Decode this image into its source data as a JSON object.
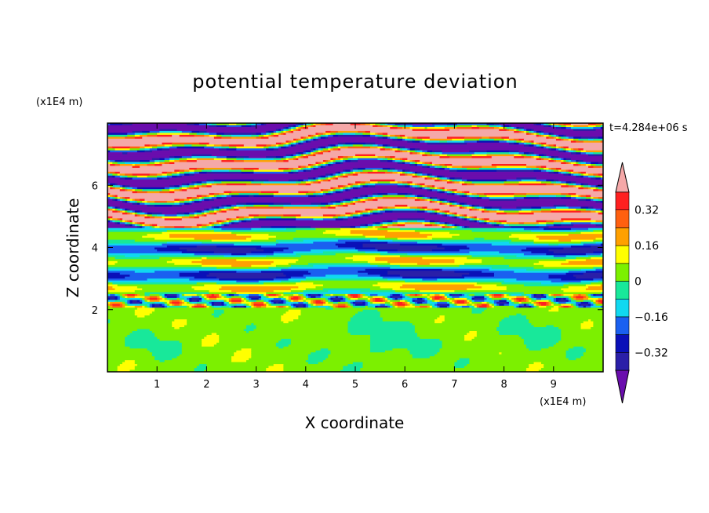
{
  "chart_data": {
    "type": "heatmap",
    "title": "potential temperature deviation",
    "xlabel": "X coordinate",
    "ylabel": "Z coordinate",
    "x_unit": "(x1E4 m)",
    "y_unit": "(x1E4 m)",
    "time_label": "t=4.284e+06 s",
    "xlim": [
      0,
      10
    ],
    "ylim": [
      0,
      8
    ],
    "x_ticks": [
      "1",
      "2",
      "3",
      "4",
      "5",
      "6",
      "7",
      "8",
      "9"
    ],
    "y_ticks": [
      "2",
      "4",
      "6"
    ],
    "colorbar": {
      "levels": [
        -0.4,
        -0.32,
        -0.24,
        -0.16,
        -0.08,
        0,
        0.08,
        0.16,
        0.24,
        0.32,
        0.4
      ],
      "labels": [
        "0.32",
        "0.16",
        "0",
        "−0.16",
        "−0.32"
      ],
      "label_values": [
        0.32,
        0.16,
        0,
        -0.16,
        -0.32
      ],
      "colors": [
        "#6a0dad",
        "#2a1fa8",
        "#0a10b8",
        "#1a60f0",
        "#10d8f0",
        "#18e89a",
        "#7cf000",
        "#ffff00",
        "#ffa000",
        "#ff6010",
        "#ff2020",
        "#f5a8a8"
      ],
      "extend": "both"
    },
    "regions": [
      {
        "z": [
          0,
          2.05
        ],
        "value": 0.05,
        "note": "lower layer mostly light green with teal patches"
      },
      {
        "z": [
          2.05,
          4.6
        ],
        "value": -0.1,
        "note": "mixed cyan/teal/yellow/red banding"
      },
      {
        "z": [
          4.6,
          8.0
        ],
        "value": "alternating",
        "note": "alternating pink (>0.4) and purple (<-0.4) horizontal bands"
      }
    ]
  }
}
